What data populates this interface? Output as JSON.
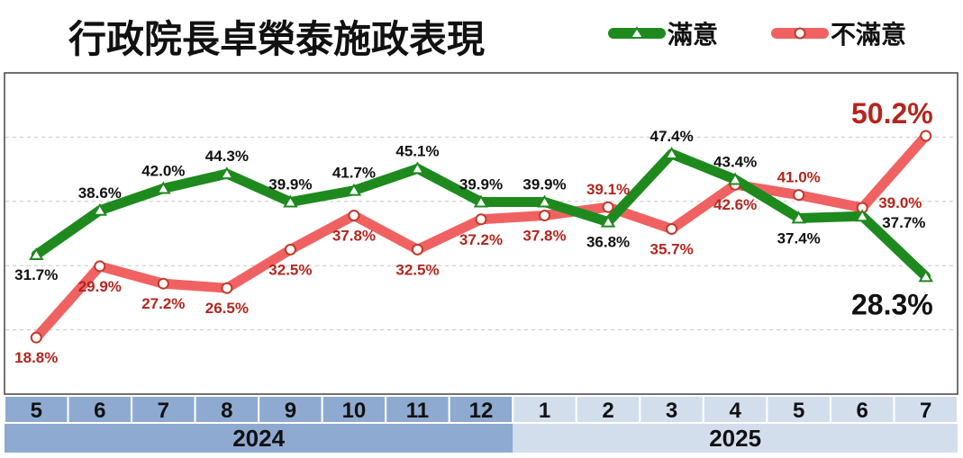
{
  "chart_data": {
    "type": "line",
    "title": "行政院長卓榮泰施政表現",
    "x": [
      "5",
      "6",
      "7",
      "8",
      "9",
      "10",
      "11",
      "12",
      "1",
      "2",
      "3",
      "4",
      "5",
      "6",
      "7"
    ],
    "year_groups": [
      {
        "label": "2024",
        "count": 8
      },
      {
        "label": "2025",
        "count": 7
      }
    ],
    "series": [
      {
        "name": "滿意",
        "color": "#1e8a1e",
        "marker": "triangle",
        "values": [
          31.7,
          38.6,
          42.0,
          44.3,
          39.9,
          41.7,
          45.1,
          39.9,
          39.9,
          36.8,
          47.4,
          43.4,
          37.4,
          37.7,
          28.3
        ],
        "labels": [
          "31.7%",
          "38.6%",
          "42.0%",
          "44.3%",
          "39.9%",
          "41.7%",
          "45.1%",
          "39.9%",
          "39.9%",
          "36.8%",
          "47.4%",
          "43.4%",
          "37.4%",
          "37.7%",
          "28.3%"
        ]
      },
      {
        "name": "不滿意",
        "color": "#f06262",
        "marker": "circle",
        "values": [
          18.8,
          29.9,
          27.2,
          26.5,
          32.5,
          37.8,
          32.5,
          37.2,
          37.8,
          39.1,
          35.7,
          42.6,
          41.0,
          39.0,
          50.2
        ],
        "labels": [
          "18.8%",
          "29.9%",
          "27.2%",
          "26.5%",
          "32.5%",
          "37.8%",
          "32.5%",
          "37.2%",
          "37.8%",
          "39.1%",
          "35.7%",
          "42.6%",
          "41.0%",
          "39.0%",
          "50.2%"
        ]
      }
    ],
    "ylim": [
      10,
      60
    ],
    "grid": true,
    "legend_position": "top-right"
  },
  "colors": {
    "axis_2024_bg": "#8faad0",
    "axis_2025_bg": "#d3deed",
    "satisfied_label": "#111111",
    "unsatisfied_label": "#b3261e"
  }
}
